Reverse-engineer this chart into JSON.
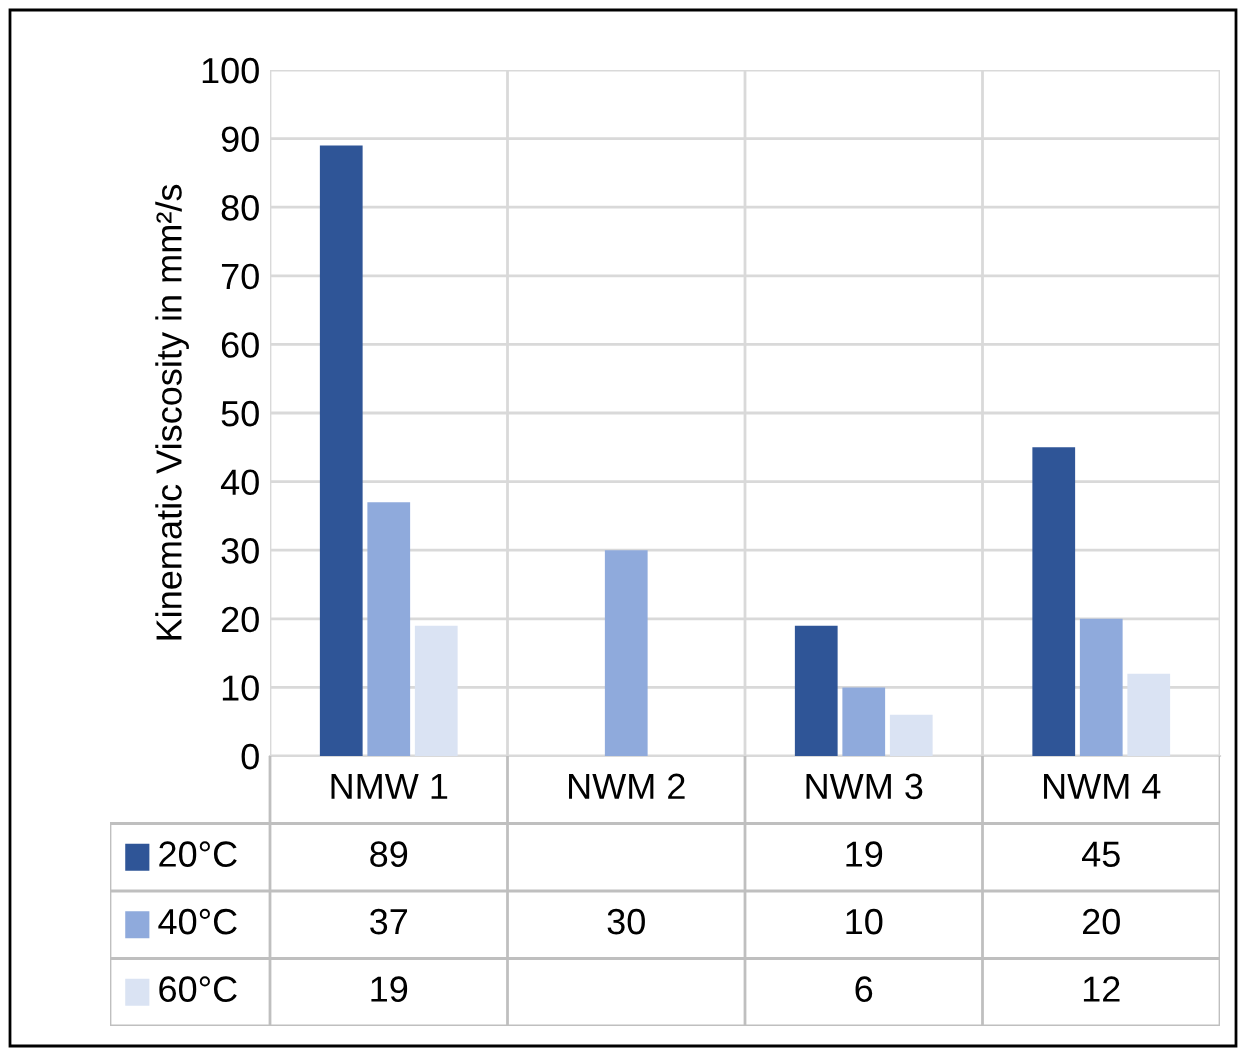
{
  "chart_data": {
    "type": "bar",
    "ylabel": "Kinematic Viscosity in mm²/s",
    "categories": [
      "NMW 1",
      "NWM 2",
      "NWM 3",
      "NWM 4"
    ],
    "series": [
      {
        "name": "20°C",
        "color": "#2f5597",
        "values": [
          89,
          null,
          19,
          45
        ]
      },
      {
        "name": "40°C",
        "color": "#8faadc",
        "values": [
          37,
          30,
          10,
          20
        ]
      },
      {
        "name": "60°C",
        "color": "#dae3f3",
        "values": [
          19,
          null,
          6,
          12
        ]
      }
    ],
    "ylim": [
      0,
      100
    ],
    "yticks": [
      0,
      10,
      20,
      30,
      40,
      50,
      60,
      70,
      80,
      90,
      100
    ],
    "grid": true,
    "legend": "bottom",
    "data_labels": true
  }
}
